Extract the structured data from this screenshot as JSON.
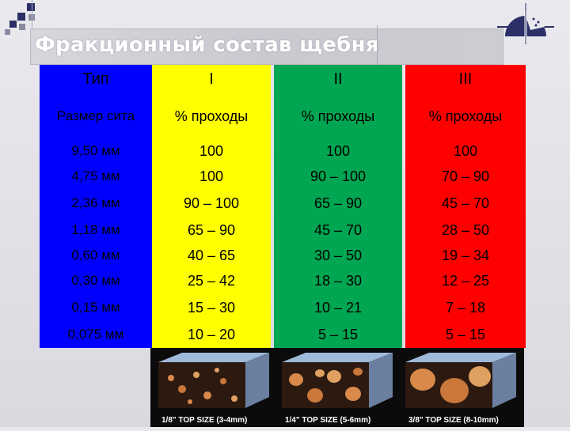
{
  "title": "Фракционный состав щебня",
  "table": {
    "header": [
      "Тип",
      "I",
      "II",
      "III"
    ],
    "subheader": [
      "Размер сита",
      "% проходы",
      "% проходы",
      "% проходы"
    ],
    "rows": [
      [
        "9,50 мм",
        "100",
        "100",
        "100"
      ],
      [
        "4,75 мм",
        "100",
        "90 – 100",
        "70 – 90"
      ],
      [
        "2,36 мм",
        "90 – 100",
        "65 – 90",
        "45 – 70"
      ],
      [
        "1,18 мм",
        "65 – 90",
        "45 – 70",
        "28 – 50"
      ],
      [
        "0,60 мм",
        "40 – 65",
        "30 – 50",
        "19 – 34"
      ],
      [
        "0,30 мм",
        "25 – 42",
        "18 – 30",
        "12 – 25"
      ],
      [
        "0,15 мм",
        "15 – 30",
        "10 – 21",
        "7 – 18"
      ],
      [
        "0,075 мм",
        "10 – 20",
        "5 – 15",
        "5 – 15"
      ]
    ]
  },
  "photo_captions": [
    "1/8\" TOP SIZE (3-4mm)",
    "1/4\" TOP SIZE (5-6mm)",
    "3/8\" TOP SIZE (8-10mm)"
  ],
  "colors": {
    "type_col": "#0000ff",
    "col_I": "#ffff00",
    "col_II": "#00a651",
    "col_III": "#ff0000"
  }
}
